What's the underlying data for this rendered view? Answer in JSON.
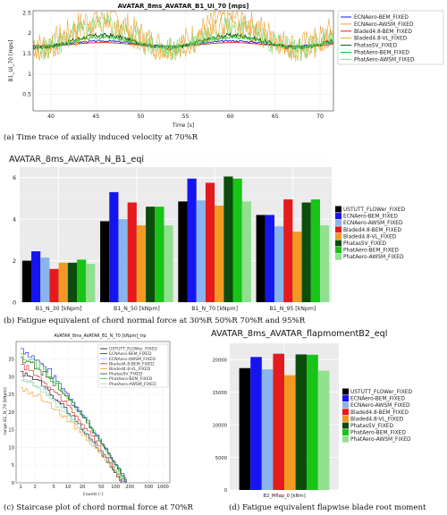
{
  "colors": {
    "USTUTT_FLOWer_FIXED": "#000000",
    "ECNAero-BEM_FIXED": "#1515f0",
    "ECNAero-AWSM_FIXED": "#8ab4ec",
    "Bladed4.8-BEM_FIXED": "#e41a1c",
    "Bladed4.8-VL_FIXED": "#f09a24",
    "PhatasSV_FIXED": "#0c4d0c",
    "PhatAero-BEM_FIXED": "#18c418",
    "PhatAero-AWSM_FIXED": "#90e090"
  },
  "captions": {
    "a": "(a)   Time trace of axially induced velocity at 70%R",
    "b": "(b)   Fatigue equivalent of chord normal force at 30%R  50%R  70%R and 95%R",
    "c": "(c)   Staircase plot of chord normal force at 70%R",
    "d": "(d)   Fatigue equivalent flapwise blade root moment"
  },
  "chart_data": [
    {
      "id": "a",
      "type": "line",
      "title": "AVATAR_8ms_AVATAR_B1_Ui_70 [mps]",
      "xlabel": "Time [s]",
      "ylabel": "B1_Ui_70 [mps]",
      "xlim": [
        38,
        71.5
      ],
      "ylim": [
        0.1,
        2.55
      ],
      "xticks": [
        40,
        45,
        50,
        55,
        60,
        65,
        70
      ],
      "yticks": [
        0.5,
        1.0,
        1.5,
        2.0,
        2.5
      ],
      "ytick_labels": [
        "0.5",
        "1",
        "1.5",
        "2",
        "2.5"
      ],
      "grid": true,
      "legend": "top-right",
      "series": [
        {
          "name": "ECNAero-BEM_FIXED",
          "color": "#1515f0",
          "mean": 1.75,
          "amp": 0.06,
          "noise": 0.02,
          "seed": 3
        },
        {
          "name": "ECNAero-AWSM_FIXED",
          "color": "#e8a33a",
          "mean": 2.05,
          "amp": 0.35,
          "noise": 0.35,
          "seed": 7
        },
        {
          "name": "Bladed4.8-BEM_FIXED",
          "color": "#e41a1c",
          "mean": 1.72,
          "amp": 0.05,
          "noise": 0.0,
          "seed": 11
        },
        {
          "name": "Bladed4.8-VL_FIXED",
          "color": "#f0a020",
          "mean": 1.88,
          "amp": 0.28,
          "noise": 0.3,
          "seed": 13
        },
        {
          "name": "PhatasSV_FIXED",
          "color": "#0c4d0c",
          "mean": 1.8,
          "amp": 0.15,
          "noise": 0.05,
          "seed": 17
        },
        {
          "name": "PhatAero-BEM_FIXED",
          "color": "#18c418",
          "mean": 1.78,
          "amp": 0.12,
          "noise": 0.04,
          "seed": 19
        },
        {
          "name": "PhatAero-AWSM_FIXED",
          "color": "#7ee07e",
          "mean": 1.9,
          "amp": 0.3,
          "noise": 0.3,
          "seed": 23
        }
      ]
    },
    {
      "id": "b",
      "type": "bar",
      "title": "AVATAR_8ms_AVATAR_N_B1_eql",
      "categories": [
        "B1_N_30 [kNpm]",
        "B1_N_50 [kNpm]",
        "B1_N_70 [kNpm]",
        "B1_N_95 [kNpm]"
      ],
      "ylim": [
        0,
        6.5
      ],
      "yticks": [
        0,
        2,
        4,
        6
      ],
      "legend": "right",
      "series": [
        {
          "name": "USTUTT_FLOWer_FIXED",
          "values": [
            2.0,
            3.9,
            4.85,
            4.2
          ]
        },
        {
          "name": "ECNAero-BEM_FIXED",
          "values": [
            2.45,
            5.3,
            5.95,
            4.2
          ]
        },
        {
          "name": "ECNAero-AWSM_FIXED",
          "values": [
            2.15,
            4.0,
            4.9,
            3.65
          ]
        },
        {
          "name": "Bladed4.8-BEM_FIXED",
          "values": [
            1.6,
            4.8,
            5.75,
            4.95
          ]
        },
        {
          "name": "Bladed4.8-VL_FIXED",
          "values": [
            1.9,
            3.7,
            4.65,
            3.4
          ]
        },
        {
          "name": "PhatasSV_FIXED",
          "values": [
            1.9,
            4.6,
            6.05,
            4.8
          ]
        },
        {
          "name": "PhatAero-BEM_FIXED",
          "values": [
            2.05,
            4.6,
            5.95,
            4.95
          ]
        },
        {
          "name": "PhatAero-AWSM_FIXED",
          "values": [
            1.85,
            3.7,
            4.85,
            3.7
          ]
        }
      ]
    },
    {
      "id": "c",
      "type": "line",
      "title": "AVATAR_8ms_AVATAR_B1_N_70 [kNpm]_trp",
      "xlabel": "Counts [-]",
      "ylabel": "range B1_N_70 [kNpm]",
      "xscale": "log",
      "xlim": [
        0.8,
        1400
      ],
      "ylim": [
        0,
        40
      ],
      "xticks": [
        1,
        2,
        5,
        10,
        20,
        50,
        100,
        200,
        500,
        1000
      ],
      "yticks": [
        0,
        5,
        10,
        15,
        20,
        25,
        30,
        35
      ],
      "grid": true,
      "legend": "top-right",
      "series": [
        {
          "name": "USTUTT_FLOWer_FIXED",
          "y0": 31.5,
          "n": 130
        },
        {
          "name": "ECNAero-BEM_FIXED",
          "y0": 38.0,
          "n": 160
        },
        {
          "name": "ECNAero-AWSM_FIXED",
          "y0": 30.0,
          "n": 150
        },
        {
          "name": "Bladed4.8-BEM_FIXED",
          "y0": 33.5,
          "n": 140
        },
        {
          "name": "Bladed4.8-VL_FIXED",
          "y0": 27.0,
          "n": 150
        },
        {
          "name": "PhatasSV_FIXED",
          "y0": 35.5,
          "n": 170
        },
        {
          "name": "PhatAero-BEM_FIXED",
          "y0": 36.5,
          "n": 165
        },
        {
          "name": "PhatAero-AWSM_FIXED",
          "y0": 29.0,
          "n": 150
        }
      ]
    },
    {
      "id": "d",
      "type": "bar",
      "title": "AVATAR_8ms_AVATAR_flapmomentB2_eql",
      "categories": [
        "B2_Mflap_0 [kNm]"
      ],
      "ylim": [
        0,
        22500
      ],
      "yticks": [
        0,
        5000,
        10000,
        15000,
        20000
      ],
      "legend": "right",
      "series": [
        {
          "name": "USTUTT_FLOWer_FIXED",
          "values": [
            18700
          ]
        },
        {
          "name": "ECNAero-BEM_FIXED",
          "values": [
            20400
          ]
        },
        {
          "name": "ECNAero-AWSM_FIXED",
          "values": [
            18500
          ]
        },
        {
          "name": "Bladed4.8-BEM_FIXED",
          "values": [
            20900
          ]
        },
        {
          "name": "Bladed4.8-VL_FIXED",
          "values": [
            17600
          ]
        },
        {
          "name": "PhatasSV_FIXED",
          "values": [
            20800
          ]
        },
        {
          "name": "PhatAero-BEM_FIXED",
          "values": [
            20750
          ]
        },
        {
          "name": "PhatAero-AWSM_FIXED",
          "values": [
            18300
          ]
        }
      ]
    }
  ]
}
